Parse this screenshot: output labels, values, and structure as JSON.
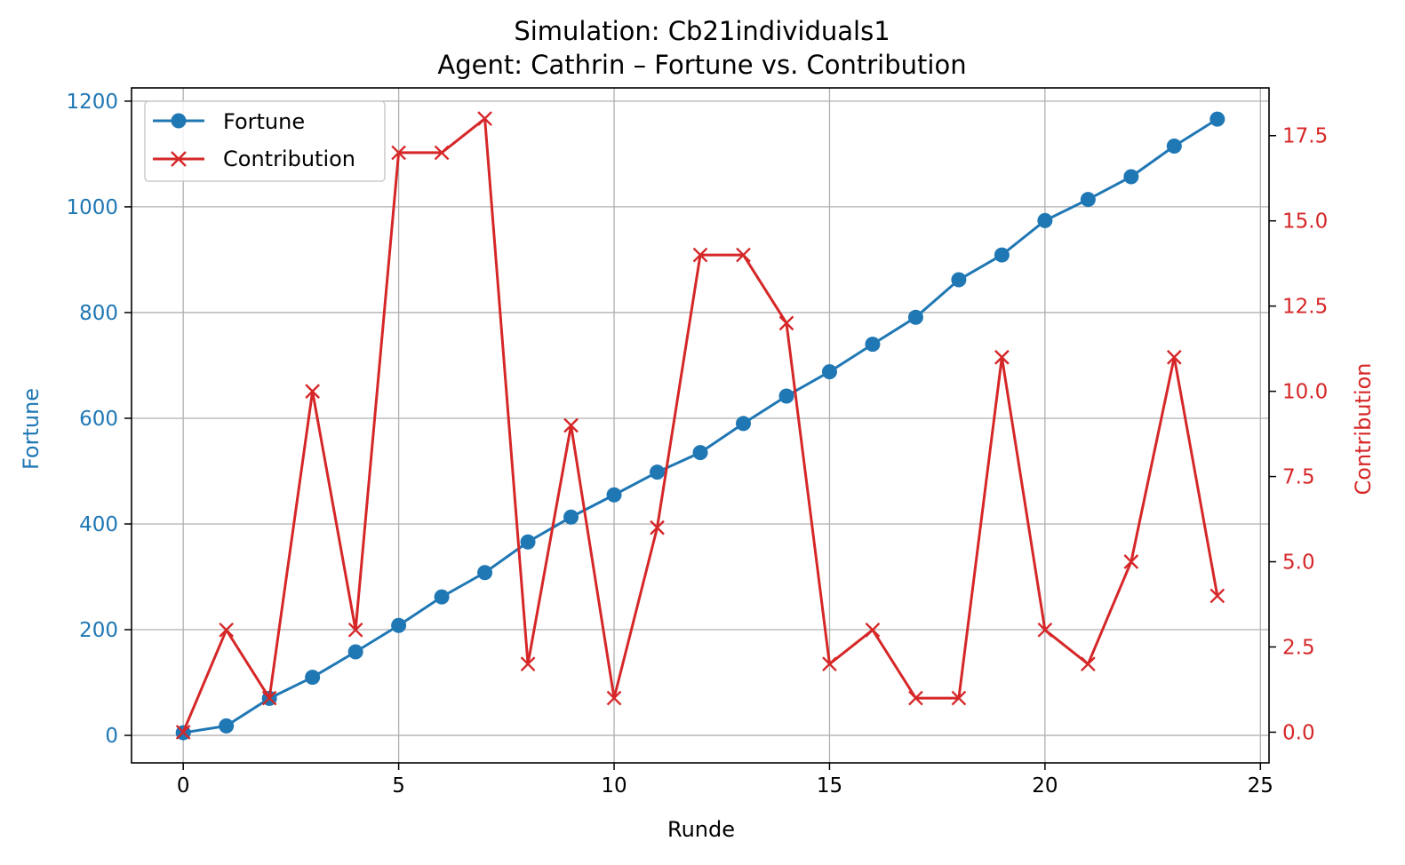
{
  "chart_data": {
    "type": "line",
    "title": "Simulation: Cb21individuals1",
    "subtitle": "Agent: Cathrin – Fortune vs. Contribution",
    "xlabel": "Runde",
    "ylabel_left": "Fortune",
    "ylabel_right": "Contribution",
    "x": [
      0,
      1,
      2,
      3,
      4,
      5,
      6,
      7,
      8,
      9,
      10,
      11,
      12,
      13,
      14,
      15,
      16,
      17,
      18,
      19,
      20,
      21,
      22,
      23,
      24
    ],
    "xlim": [
      -1.2,
      25.2
    ],
    "xticks": [
      0,
      5,
      10,
      15,
      20,
      25
    ],
    "ylim_left": [
      -52,
      1225
    ],
    "yticks_left": [
      0,
      200,
      400,
      600,
      800,
      1000,
      1200
    ],
    "ylim_right": [
      -0.9,
      18.9
    ],
    "yticks_right": [
      0.0,
      2.5,
      5.0,
      7.5,
      10.0,
      12.5,
      15.0,
      17.5
    ],
    "yticks_right_labels": [
      "0.0",
      "2.5",
      "5.0",
      "7.5",
      "10.0",
      "12.5",
      "15.0",
      "17.5"
    ],
    "grid": true,
    "legend_position": "top-left",
    "series": [
      {
        "name": "Fortune",
        "axis": "left",
        "marker": "circle",
        "color": "#1f77b4",
        "values": [
          5,
          18,
          70,
          110,
          158,
          208,
          262,
          308,
          366,
          413,
          455,
          498,
          535,
          590,
          642,
          688,
          740,
          791,
          862,
          909,
          974,
          1014,
          1057,
          1115,
          1166
        ]
      },
      {
        "name": "Contribution",
        "axis": "right",
        "marker": "x",
        "color": "#d62728",
        "values": [
          0,
          3,
          1,
          10,
          3,
          17,
          17,
          18,
          2,
          9,
          1,
          6,
          14,
          14,
          12,
          2,
          3,
          1,
          1,
          11,
          3,
          2,
          5,
          11,
          4
        ]
      }
    ]
  }
}
